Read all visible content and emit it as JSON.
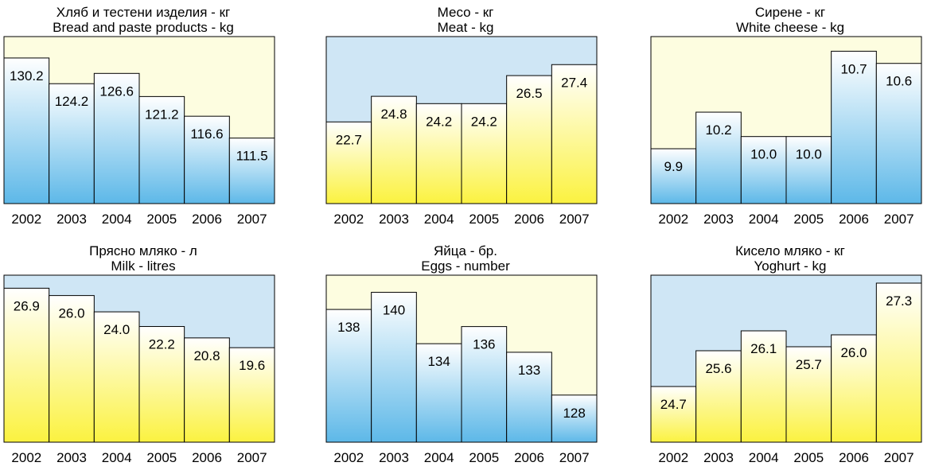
{
  "colors": {
    "light_yellow": "#fdfde0",
    "light_blue": "#cfe6f5",
    "gradient_blue": "#5db8e8",
    "gradient_yellow": "#fbf240",
    "stroke": "#000000"
  },
  "chart_data": [
    {
      "type": "bar",
      "title": "Хляб и тестени изделия - кг",
      "subtitle": "Bread and paste products - kg",
      "categories": [
        "2002",
        "2003",
        "2004",
        "2005",
        "2006",
        "2007"
      ],
      "values": [
        130.2,
        124.2,
        126.6,
        121.2,
        116.6,
        111.5
      ],
      "value_labels": [
        "130.2",
        "124.2",
        "126.6",
        "121.2",
        "116.6",
        "111.5"
      ],
      "ylim": [
        96.2,
        135.2
      ],
      "plot_background": "light_yellow",
      "bar_fill": "blue_gradient"
    },
    {
      "type": "bar",
      "title": "Месо - кг",
      "subtitle": "Meat - kg",
      "categories": [
        "2002",
        "2003",
        "2004",
        "2005",
        "2006",
        "2007"
      ],
      "values": [
        22.7,
        24.8,
        24.2,
        24.2,
        26.5,
        27.4
      ],
      "value_labels": [
        "22.7",
        "24.8",
        "24.2",
        "24.2",
        "26.5",
        "27.4"
      ],
      "ylim": [
        16.0,
        29.7
      ],
      "plot_background": "light_blue",
      "bar_fill": "yellow_gradient"
    },
    {
      "type": "bar",
      "title": "Сирене - кг",
      "subtitle": "White cheese - kg",
      "categories": [
        "2002",
        "2003",
        "2004",
        "2005",
        "2006",
        "2007"
      ],
      "values": [
        9.9,
        10.2,
        10.0,
        10.0,
        10.7,
        10.6
      ],
      "value_labels": [
        "9.9",
        "10.2",
        "10.0",
        "10.0",
        "10.7",
        "10.6"
      ],
      "ylim": [
        9.45,
        10.82
      ],
      "plot_background": "light_yellow",
      "bar_fill": "blue_gradient"
    },
    {
      "type": "bar",
      "title": "Прясно мляко - л",
      "subtitle": "Milk - litres",
      "categories": [
        "2002",
        "2003",
        "2004",
        "2005",
        "2006",
        "2007"
      ],
      "values": [
        26.9,
        26.0,
        24.0,
        22.2,
        20.8,
        19.6
      ],
      "value_labels": [
        "26.9",
        "26.0",
        "24.0",
        "22.2",
        "20.8",
        "19.6"
      ],
      "ylim": [
        8.0,
        28.5
      ],
      "plot_background": "light_blue",
      "bar_fill": "yellow_gradient"
    },
    {
      "type": "bar",
      "title": "Яйца - бр.",
      "subtitle": "Eggs - number",
      "categories": [
        "2002",
        "2003",
        "2004",
        "2005",
        "2006",
        "2007"
      ],
      "values": [
        138,
        140,
        134,
        136,
        133,
        128
      ],
      "value_labels": [
        "138",
        "140",
        "134",
        "136",
        "133",
        "128"
      ],
      "ylim": [
        122.5,
        142.0
      ],
      "plot_background": "light_yellow",
      "bar_fill": "blue_gradient"
    },
    {
      "type": "bar",
      "title": "Кисело мляко - кг",
      "subtitle": "Yoghurt - kg",
      "categories": [
        "2002",
        "2003",
        "2004",
        "2005",
        "2006",
        "2007"
      ],
      "values": [
        24.7,
        25.6,
        26.1,
        25.7,
        26.0,
        27.3
      ],
      "value_labels": [
        "24.7",
        "25.6",
        "26.1",
        "25.7",
        "26.0",
        "27.3"
      ],
      "ylim": [
        23.3,
        27.5
      ],
      "plot_background": "light_blue",
      "bar_fill": "yellow_gradient"
    }
  ]
}
